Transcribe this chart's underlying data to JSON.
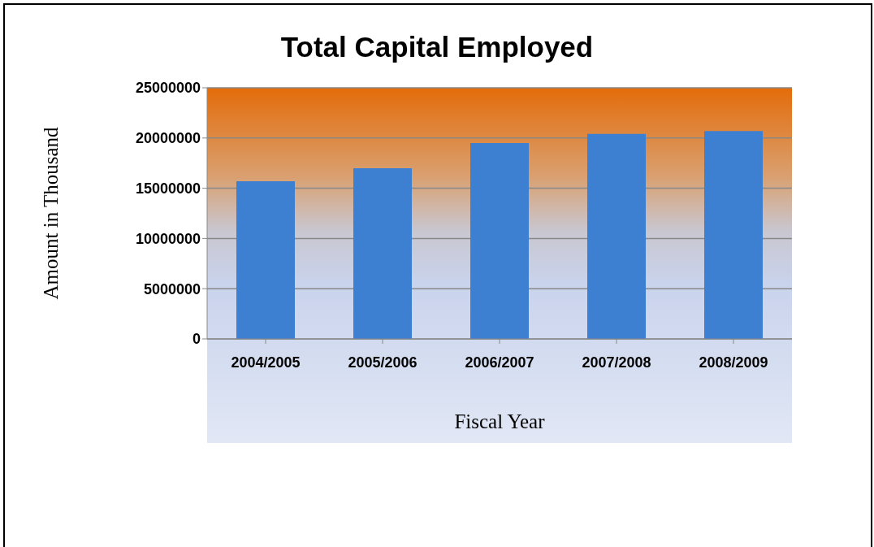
{
  "chart_data": {
    "type": "bar",
    "title": "Total Capital Employed",
    "xlabel": "Fiscal Year",
    "ylabel": "Amount in Thousand",
    "categories": [
      "2004/2005",
      "2005/2006",
      "2006/2007",
      "2007/2008",
      "2008/2009"
    ],
    "values": [
      15700000,
      17000000,
      19500000,
      20400000,
      20700000
    ],
    "color": "#3d7fd0",
    "ylim": [
      0,
      25000000
    ],
    "yticks": [
      0,
      5000000,
      10000000,
      15000000,
      20000000,
      25000000
    ],
    "grid": "y"
  }
}
